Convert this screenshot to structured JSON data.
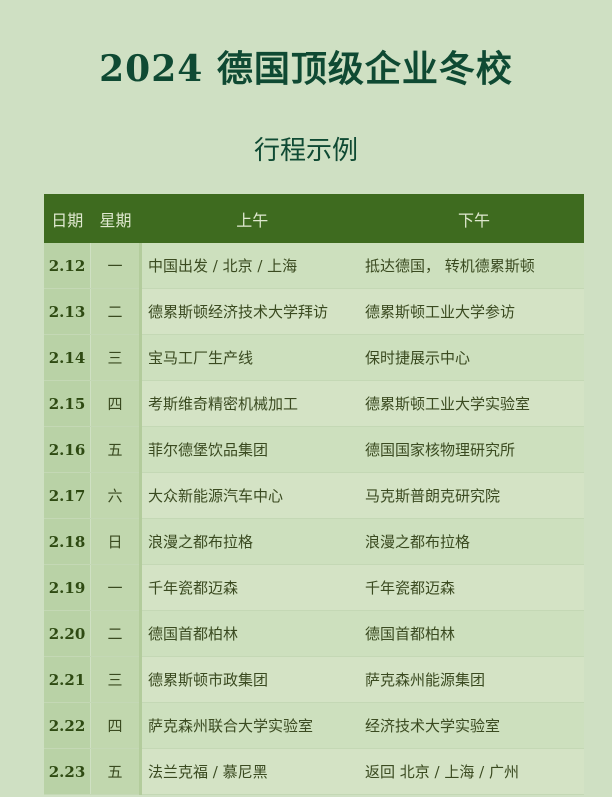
{
  "title": "2024 德国顶级企业冬校",
  "subtitle": "行程示例",
  "table": {
    "headers": [
      "日期",
      "星期",
      "上午",
      "下午"
    ],
    "rows": [
      [
        "2.12",
        "一",
        "中国出发 / 北京 / 上海",
        "抵达德国， 转机德累斯顿"
      ],
      [
        "2.13",
        "二",
        "德累斯顿经济技术大学拜访",
        "德累斯顿工业大学参访"
      ],
      [
        "2.14",
        "三",
        "宝马工厂生产线",
        "保时捷展示中心"
      ],
      [
        "2.15",
        "四",
        "考斯维奇精密机械加工",
        "德累斯顿工业大学实验室"
      ],
      [
        "2.16",
        "五",
        "菲尔德堡饮品集团",
        "德国国家核物理研究所"
      ],
      [
        "2.17",
        "六",
        "大众新能源汽车中心",
        "马克斯普朗克研究院"
      ],
      [
        "2.18",
        "日",
        "浪漫之都布拉格",
        "浪漫之都布拉格"
      ],
      [
        "2.19",
        "一",
        "千年瓷都迈森",
        "千年瓷都迈森"
      ],
      [
        "2.20",
        "二",
        "德国首都柏林",
        "德国首都柏林"
      ],
      [
        "2.21",
        "三",
        "德累斯顿市政集团",
        "萨克森州能源集团"
      ],
      [
        "2.22",
        "四",
        "萨克森州联合大学实验室",
        "经济技术大学实验室"
      ],
      [
        "2.23",
        "五",
        "法兰克福 / 慕尼黑",
        "返回 北京 / 上海 / 广州"
      ]
    ]
  }
}
